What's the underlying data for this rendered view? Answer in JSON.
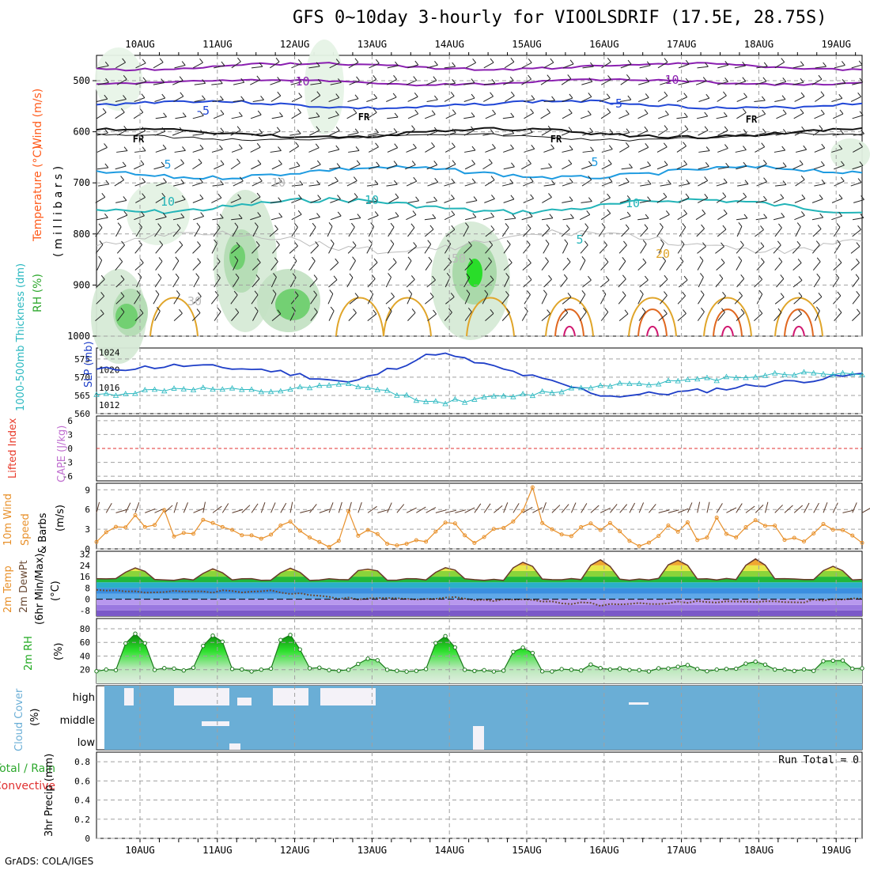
{
  "title": "GFS 0~10day 3-hourly for VIOOLSDRIF (17.5E, 28.75S)",
  "credit": "GrADS: COLA/IGES",
  "date_labels": [
    "10AUG",
    "11AUG",
    "12AUG",
    "13AUG",
    "14AUG",
    "15AUG",
    "16AUG",
    "17AUG",
    "18AUG",
    "19AUG"
  ],
  "colors": {
    "grid": "#a0a0a0",
    "thickness": "#2ab8c0",
    "slp": "#1f3fc8",
    "wind": "#e8902a",
    "temp_top": "#d23c0e",
    "dew": "#6a4a35",
    "rh": "#1ea81e",
    "cloud": "#6aaed6",
    "zero_line": "#e03030"
  },
  "panels": {
    "upper": {
      "ylabel_parts": [
        "RH (%)",
        "Temperature (°C)",
        "Wind (m/s)",
        "( m i l l i b a r s )"
      ],
      "ylabel_colors": [
        "#2ea82e",
        "#ff5a1a",
        "#ff5a1a",
        "#000000"
      ],
      "yticks": [
        500,
        600,
        700,
        800,
        900,
        1000
      ],
      "contour_labels": [
        "-10",
        "-10",
        "-5",
        "-5",
        "FR",
        "FR",
        "FR",
        "FR",
        "5",
        "5",
        "10",
        "10",
        "10",
        "5",
        "20",
        "10",
        "30",
        "50"
      ]
    },
    "thickness": {
      "ylabel_left": "1000-500mb Thickness (dm)",
      "ylabel_right": "SLP (mb)",
      "yticks_left": [
        560,
        565,
        570,
        575
      ],
      "yticks_right": [
        1012,
        1016,
        1020,
        1024
      ]
    },
    "cape": {
      "ylabel_left": "Lifted Index",
      "ylabel_right": "CAPE (J/kg)",
      "yticks": [
        6,
        3,
        0,
        -3,
        -6
      ]
    },
    "wind10m": {
      "ylabel": [
        "10m Wind",
        "Speed",
        "& Barbs",
        "(m/s)"
      ],
      "yticks": [
        0,
        3,
        6,
        9
      ]
    },
    "temp2m": {
      "ylabel": [
        "2m Temp",
        "2m DewPt",
        "(6hr Min/Max)",
        "(°C)"
      ],
      "yticks": [
        32,
        24,
        16,
        8,
        0,
        -8
      ]
    },
    "rh2m": {
      "ylabel": [
        "2m RH",
        "(%)"
      ],
      "yticks": [
        20,
        40,
        60,
        80
      ]
    },
    "cloud": {
      "ylabel": [
        "Cloud Cover",
        "(%)"
      ],
      "levels": [
        "high",
        "middle",
        "low"
      ]
    },
    "precip": {
      "ylabel": [
        "Total / Rain",
        "Convective",
        "3hr Precip (mm)"
      ],
      "yticks": [
        0,
        0.2,
        0.4,
        0.6,
        0.8
      ],
      "run_total": "Run Total = 0"
    }
  },
  "chart_data": [
    {
      "type": "line",
      "title": "1000-500mb Thickness (dm) and SLP (mb)",
      "x": [
        "10AUG",
        "11AUG",
        "12AUG",
        "13AUG",
        "14AUG",
        "15AUG",
        "16AUG",
        "17AUG",
        "18AUG",
        "19AUG"
      ],
      "series": [
        {
          "name": "1000-500mb Thickness (dm)",
          "values": [
            565,
            567,
            566,
            568,
            563,
            565,
            568,
            569,
            571,
            571
          ],
          "ylim": [
            560,
            578
          ]
        },
        {
          "name": "SLP (mb)",
          "values": [
            1020,
            1021,
            1020,
            1017,
            1024,
            1019,
            1014,
            1015,
            1017,
            1019
          ],
          "ylim": [
            1010,
            1025
          ]
        }
      ]
    },
    {
      "type": "line",
      "title": "10m Wind Speed (m/s)",
      "x": [
        "10AUG",
        "11AUG",
        "12AUG",
        "13AUG",
        "14AUG",
        "15AUG",
        "16AUG",
        "17AUG",
        "18AUG",
        "19AUG"
      ],
      "series": [
        {
          "name": "10m Wind Speed",
          "values": [
            3,
            3,
            3,
            1,
            2,
            4,
            2,
            2,
            3,
            2
          ]
        }
      ],
      "ylim": [
        0,
        10
      ]
    },
    {
      "type": "area",
      "title": "2m Temp (°C)",
      "x": [
        "10AUG",
        "11AUG",
        "12AUG",
        "13AUG",
        "14AUG",
        "15AUG",
        "16AUG",
        "17AUG",
        "18AUG",
        "19AUG"
      ],
      "series": [
        {
          "name": "2m Temp max",
          "values": [
            22,
            21,
            21,
            22,
            22,
            26,
            28,
            28,
            28,
            20
          ]
        },
        {
          "name": "2m DewPt",
          "values": [
            6,
            5,
            6,
            0,
            1,
            -1,
            -4,
            -2,
            -2,
            0
          ]
        }
      ],
      "ylim": [
        -12,
        34
      ]
    },
    {
      "type": "area",
      "title": "2m RH (%)",
      "x": [
        "10AUG",
        "11AUG",
        "12AUG",
        "13AUG",
        "14AUG",
        "15AUG",
        "16AUG",
        "17AUG",
        "18AUG",
        "19AUG"
      ],
      "series": [
        {
          "name": "2m RH max",
          "values": [
            85,
            62,
            88,
            27,
            72,
            55,
            22,
            28,
            33,
            36
          ]
        }
      ],
      "ylim": [
        0,
        95
      ]
    },
    {
      "type": "bar",
      "title": "3hr Precip (mm)",
      "categories": [
        "10AUG",
        "11AUG",
        "12AUG",
        "13AUG",
        "14AUG",
        "15AUG",
        "16AUG",
        "17AUG",
        "18AUG",
        "19AUG"
      ],
      "values": [
        0,
        0,
        0,
        0,
        0,
        0,
        0,
        0,
        0,
        0
      ],
      "ylim": [
        0,
        0.9
      ]
    }
  ]
}
